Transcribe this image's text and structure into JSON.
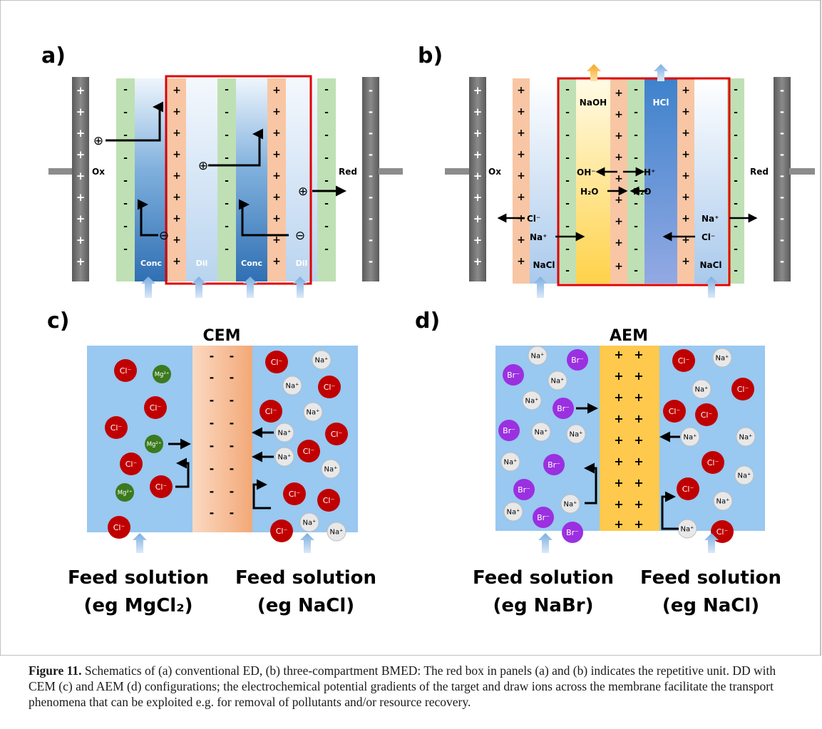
{
  "panel_a": {
    "label": "a)",
    "ox_label": "Ox",
    "red_label": "Red",
    "channel_labels": [
      "Conc",
      "Dil",
      "Conc",
      "Dil"
    ],
    "cation_symbol": "⊕",
    "anion_symbol": "⊖"
  },
  "panel_b": {
    "label": "b)",
    "ox_label": "Ox",
    "red_label": "Red",
    "naoh": "NaOH",
    "hcl": "HCl",
    "oh": "OH⁻",
    "h": "H⁺",
    "h2o_left": "H₂O",
    "h2o_right": "H₂O",
    "cl_left": "Cl⁻",
    "na_left": "Na⁺",
    "na_right": "Na⁺",
    "cl_right": "Cl⁻",
    "nacl_left": "NaCl",
    "nacl_right": "NaCl"
  },
  "panel_c": {
    "label": "c)",
    "membrane_title": "CEM",
    "feed_left_line1": "Feed solution",
    "feed_left_line2": "(eg MgCl₂)",
    "feed_right_line1": "Feed solution",
    "feed_right_line2": "(eg NaCl)"
  },
  "panel_d": {
    "label": "d)",
    "membrane_title": "AEM",
    "feed_left_line1": "Feed solution",
    "feed_left_line2": "(eg NaBr)",
    "feed_right_line1": "Feed solution",
    "feed_right_line2": "(eg NaCl)"
  },
  "ions": {
    "cl": "Cl⁻",
    "na": "Na⁺",
    "mg": "Mg²⁺",
    "br": "Br⁻"
  },
  "colors": {
    "cl_ion": "#c00000",
    "na_ion": "#e8e8e8",
    "mg_ion": "#3b7a1e",
    "br_ion": "#9b30e0",
    "solution_blue": "#99c8f0",
    "cem_orange": "#f4b488",
    "aem_yellow": "#ffc94d",
    "repeat_box_red": "#e00000"
  },
  "caption": {
    "figure_label": "Figure 11.",
    "text": " Schematics of (a) conventional ED, (b) three-compartment BMED: The red box in panels (a) and (b) indicates the repetitive unit. DD with CEM (c) and AEM (d) configurations; the electrochemical potential gradients of the target and draw ions across the membrane facilitate the transport phenomena that can be exploited e.g. for removal of pollutants and/or resource recovery."
  }
}
